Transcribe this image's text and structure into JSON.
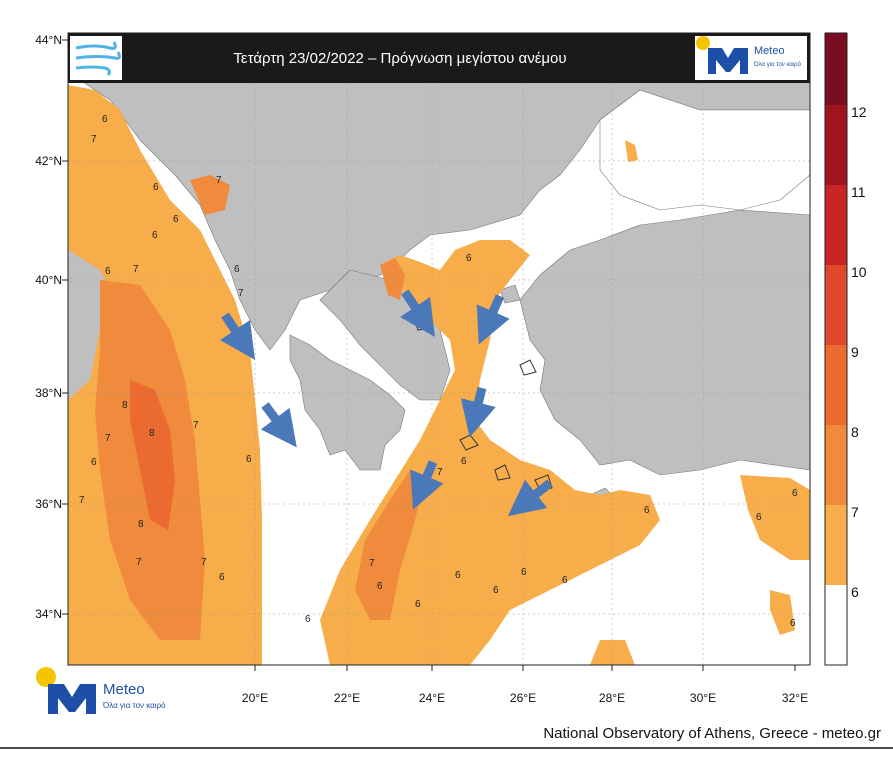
{
  "title": "Τετάρτη 23/02/2022 – Πρόγνωση μεγίστου ανέμου",
  "brand": {
    "name": "Meteo",
    "tagline": "Όλα για τον καιρό"
  },
  "footer": "National Observatory of Athens, Greece - meteo.gr",
  "axes": {
    "lon_labels": [
      "20°E",
      "22°E",
      "24°E",
      "26°E",
      "28°E",
      "30°E",
      "32°E"
    ],
    "lat_labels": [
      "44°N",
      "42°N",
      "40°N",
      "38°N",
      "36°N",
      "34°N"
    ]
  },
  "colorbar": {
    "labels": [
      "6",
      "7",
      "8",
      "9",
      "10",
      "11",
      "12"
    ],
    "colors": [
      "#ffffff",
      "#f7ad4a",
      "#f08a3c",
      "#ea6a30",
      "#e0482a",
      "#c82424",
      "#a01420",
      "#7a0c22"
    ]
  },
  "colors": {
    "land": "#bfbfbf",
    "sea": "#ffffff",
    "arrow": "#4a78b8",
    "title_bg": "#1a1a1a"
  },
  "contour_labels": [
    "6",
    "7",
    "6",
    "7",
    "6",
    "6",
    "6",
    "7",
    "7",
    "6",
    "7",
    "8",
    "8",
    "7",
    "6",
    "6",
    "7",
    "8",
    "7",
    "7",
    "7",
    "6",
    "6",
    "6",
    "7",
    "6",
    "6",
    "6",
    "6",
    "6",
    "6",
    "6",
    "6",
    "6",
    "7",
    "6",
    "6"
  ],
  "icons": [
    "wind-icon",
    "meteo-logo",
    "wind-arrow"
  ]
}
